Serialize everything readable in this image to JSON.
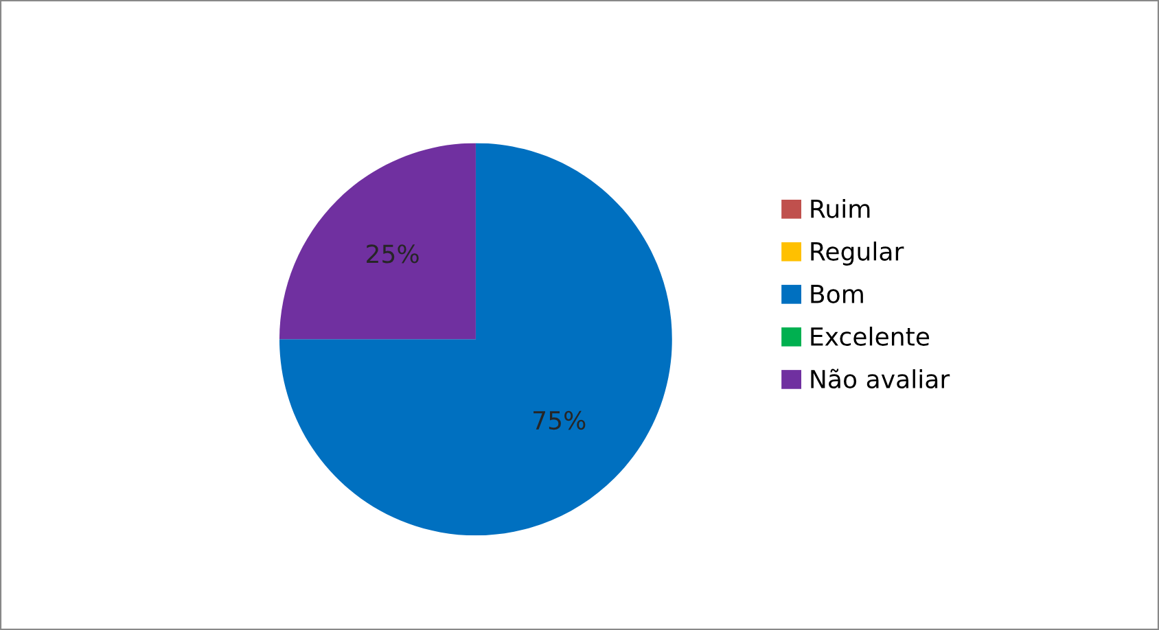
{
  "chart_data": {
    "type": "pie",
    "categories": [
      "Ruim",
      "Regular",
      "Bom",
      "Excelente",
      "Não avaliar"
    ],
    "values": [
      0,
      0,
      75,
      0,
      25
    ],
    "colors": [
      "#c0504d",
      "#ffc000",
      "#0070c0",
      "#00b050",
      "#7030a0"
    ],
    "value_labels": [
      null,
      null,
      "75%",
      null,
      "25%"
    ],
    "legend": "right"
  }
}
